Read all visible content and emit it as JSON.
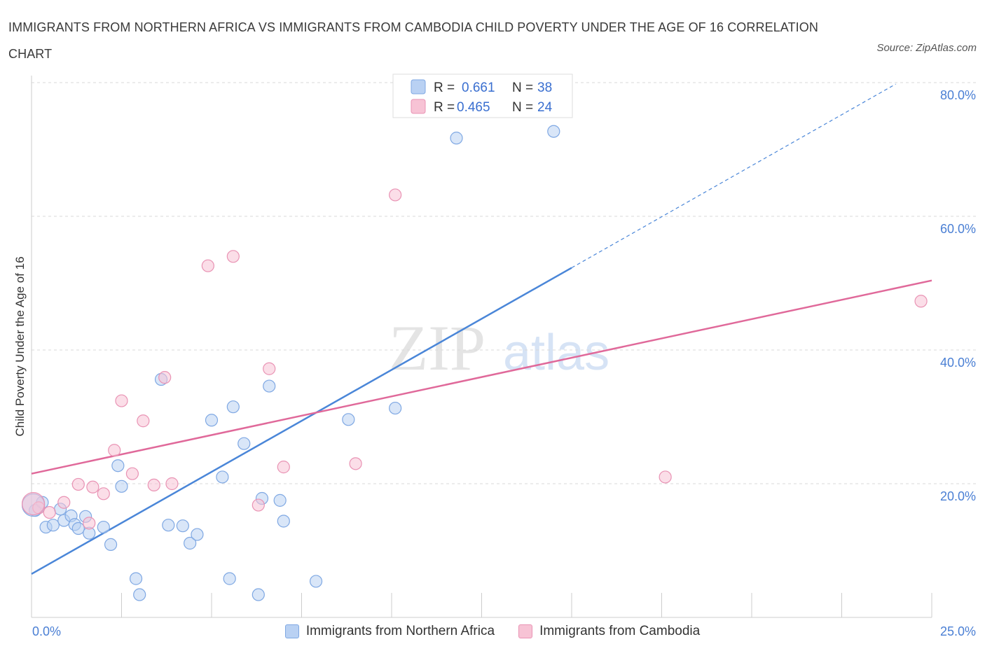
{
  "title": "IMMIGRANTS FROM NORTHERN AFRICA VS IMMIGRANTS FROM CAMBODIA CHILD POVERTY UNDER THE AGE OF 16 CORRELATION CHART",
  "source": "Source: ZipAtlas.com",
  "watermark": {
    "zip": "ZIP",
    "atlas": "atlas"
  },
  "colors": {
    "blue": "#4a86d8",
    "blue_fill": "#b9d1f3",
    "pink": "#e0699a",
    "pink_fill": "#f7c3d5",
    "grid": "#d8d8d8",
    "axis_text": "#4a7fd4"
  },
  "chart_data": {
    "type": "scatter",
    "title": "IMMIGRANTS FROM NORTHERN AFRICA VS IMMIGRANTS FROM CAMBODIA CHILD POVERTY UNDER THE AGE OF 16 CORRELATION CHART",
    "xlabel": "",
    "ylabel": "Child Poverty Under the Age of 16",
    "xlim": [
      0,
      25
    ],
    "ylim": [
      0,
      80
    ],
    "x_tick_labels": [
      "0.0%",
      "25.0%"
    ],
    "y_ticks": [
      20,
      40,
      60,
      80
    ],
    "y_tick_labels": [
      "20.0%",
      "40.0%",
      "60.0%",
      "80.0%"
    ],
    "grid": true,
    "legend": [
      {
        "series": "Immigrants from Northern Africa",
        "r_label": "R =",
        "r": "0.661",
        "n_label": "N =",
        "n": "38"
      },
      {
        "series": "Immigrants from Cambodia",
        "r_label": "R =",
        "r": "0.465",
        "n_label": "N =",
        "n": "24"
      }
    ],
    "series": [
      {
        "name": "Immigrants from Northern Africa",
        "color": "#4a86d8",
        "trend": {
          "x0": 0,
          "y0": 6.5,
          "x1": 15,
          "y1": 52.3,
          "dash_to_x": 24.0
        },
        "points": [
          [
            0.1,
            16.0
          ],
          [
            0.3,
            17.2
          ],
          [
            0.4,
            13.5
          ],
          [
            0.6,
            13.8
          ],
          [
            0.8,
            16.2
          ],
          [
            0.9,
            14.5
          ],
          [
            1.1,
            15.2
          ],
          [
            1.2,
            13.9
          ],
          [
            1.3,
            13.3
          ],
          [
            1.5,
            15.1
          ],
          [
            1.6,
            12.6
          ],
          [
            2.0,
            13.5
          ],
          [
            2.2,
            10.9
          ],
          [
            2.4,
            22.7
          ],
          [
            2.5,
            19.6
          ],
          [
            2.9,
            5.8
          ],
          [
            3.0,
            3.4
          ],
          [
            3.6,
            35.6
          ],
          [
            3.8,
            13.8
          ],
          [
            4.2,
            13.7
          ],
          [
            4.4,
            11.1
          ],
          [
            4.6,
            12.4
          ],
          [
            5.0,
            29.5
          ],
          [
            5.3,
            21.0
          ],
          [
            5.5,
            5.8
          ],
          [
            5.6,
            31.5
          ],
          [
            5.9,
            26.0
          ],
          [
            6.3,
            3.4
          ],
          [
            6.4,
            17.8
          ],
          [
            6.6,
            34.6
          ],
          [
            6.9,
            17.5
          ],
          [
            7.0,
            14.4
          ],
          [
            7.9,
            5.4
          ],
          [
            8.8,
            29.6
          ],
          [
            10.1,
            31.3
          ],
          [
            11.8,
            71.7
          ],
          [
            14.5,
            72.7
          ],
          [
            0.05,
            16.8
          ]
        ]
      },
      {
        "name": "Immigrants from Cambodia",
        "color": "#e0699a",
        "trend": {
          "x0": 0,
          "y0": 21.5,
          "x1": 25,
          "y1": 50.4
        },
        "points": [
          [
            0.2,
            16.4
          ],
          [
            0.5,
            15.7
          ],
          [
            0.9,
            17.2
          ],
          [
            1.3,
            19.9
          ],
          [
            1.6,
            14.1
          ],
          [
            1.7,
            19.5
          ],
          [
            2.0,
            18.5
          ],
          [
            2.3,
            25.0
          ],
          [
            2.5,
            32.4
          ],
          [
            2.8,
            21.5
          ],
          [
            3.1,
            29.4
          ],
          [
            3.4,
            19.8
          ],
          [
            3.7,
            35.9
          ],
          [
            3.9,
            20.0
          ],
          [
            4.9,
            52.6
          ],
          [
            5.6,
            54.0
          ],
          [
            6.3,
            16.8
          ],
          [
            6.6,
            37.2
          ],
          [
            7.0,
            22.5
          ],
          [
            9.0,
            23.0
          ],
          [
            10.1,
            63.2
          ],
          [
            17.6,
            21.0
          ],
          [
            24.7,
            47.3
          ],
          [
            0.05,
            17.0
          ]
        ]
      }
    ]
  }
}
